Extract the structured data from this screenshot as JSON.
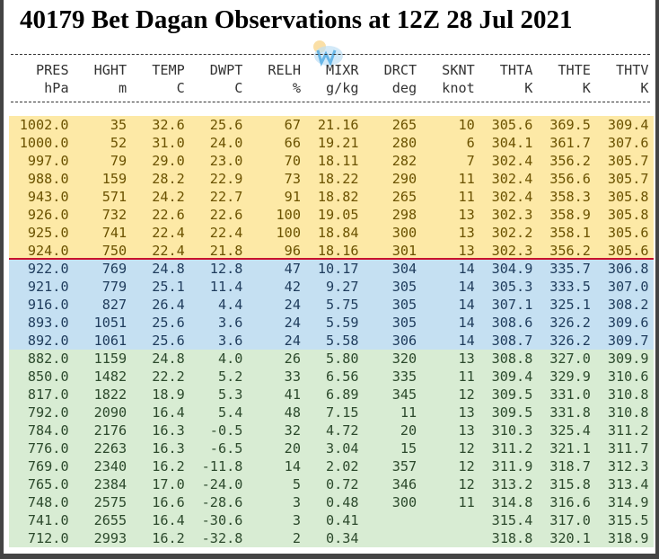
{
  "title": "40179 Bet Dagan Observations at 12Z 28 Jul 2021",
  "columns": [
    "PRES",
    "HGHT",
    "TEMP",
    "DWPT",
    "RELH",
    "MIXR",
    "DRCT",
    "SKNT",
    "THTA",
    "THTE",
    "THTV"
  ],
  "units": [
    "hPa",
    "m",
    "C",
    "C",
    "%",
    "g/kg",
    "deg",
    "knot",
    "K",
    "K",
    "K"
  ],
  "colors": {
    "yellow": "#fde9a6",
    "blue": "#c5e0f2",
    "green": "#d8ecd3",
    "separator": "#c8102e"
  },
  "bands": [
    {
      "color": "yellow",
      "rows": [
        [
          "1002.0",
          "35",
          "32.6",
          "25.6",
          "67",
          "21.16",
          "265",
          "10",
          "305.6",
          "369.5",
          "309.4"
        ],
        [
          "1000.0",
          "52",
          "31.0",
          "24.0",
          "66",
          "19.21",
          "280",
          "6",
          "304.1",
          "361.7",
          "307.6"
        ],
        [
          "997.0",
          "79",
          "29.0",
          "23.0",
          "70",
          "18.11",
          "282",
          "7",
          "302.4",
          "356.2",
          "305.7"
        ],
        [
          "988.0",
          "159",
          "28.2",
          "22.9",
          "73",
          "18.22",
          "290",
          "11",
          "302.4",
          "356.6",
          "305.7"
        ],
        [
          "943.0",
          "571",
          "24.2",
          "22.7",
          "91",
          "18.82",
          "265",
          "11",
          "302.4",
          "358.3",
          "305.8"
        ],
        [
          "926.0",
          "732",
          "22.6",
          "22.6",
          "100",
          "19.05",
          "298",
          "13",
          "302.3",
          "358.9",
          "305.8"
        ],
        [
          "925.0",
          "741",
          "22.4",
          "22.4",
          "100",
          "18.84",
          "300",
          "13",
          "302.2",
          "358.1",
          "305.6"
        ],
        [
          "924.0",
          "750",
          "22.4",
          "21.8",
          "96",
          "18.16",
          "301",
          "13",
          "302.3",
          "356.2",
          "305.6"
        ]
      ]
    },
    {
      "color": "blue",
      "rows": [
        [
          "922.0",
          "769",
          "24.8",
          "12.8",
          "47",
          "10.17",
          "304",
          "14",
          "304.9",
          "335.7",
          "306.8"
        ],
        [
          "921.0",
          "779",
          "25.1",
          "11.4",
          "42",
          "9.27",
          "305",
          "14",
          "305.3",
          "333.5",
          "307.0"
        ],
        [
          "916.0",
          "827",
          "26.4",
          "4.4",
          "24",
          "5.75",
          "305",
          "14",
          "307.1",
          "325.1",
          "308.2"
        ],
        [
          "893.0",
          "1051",
          "25.6",
          "3.6",
          "24",
          "5.59",
          "305",
          "14",
          "308.6",
          "326.2",
          "309.6"
        ],
        [
          "892.0",
          "1061",
          "25.6",
          "3.6",
          "24",
          "5.58",
          "306",
          "14",
          "308.7",
          "326.2",
          "309.7"
        ]
      ]
    },
    {
      "color": "green",
      "rows": [
        [
          "882.0",
          "1159",
          "24.8",
          "4.0",
          "26",
          "5.80",
          "320",
          "13",
          "308.8",
          "327.0",
          "309.9"
        ],
        [
          "850.0",
          "1482",
          "22.2",
          "5.2",
          "33",
          "6.56",
          "335",
          "11",
          "309.4",
          "329.9",
          "310.6"
        ],
        [
          "817.0",
          "1822",
          "18.9",
          "5.3",
          "41",
          "6.89",
          "345",
          "12",
          "309.5",
          "331.0",
          "310.8"
        ],
        [
          "792.0",
          "2090",
          "16.4",
          "5.4",
          "48",
          "7.15",
          "11",
          "13",
          "309.5",
          "331.8",
          "310.8"
        ],
        [
          "784.0",
          "2176",
          "16.3",
          "-0.5",
          "32",
          "4.72",
          "20",
          "13",
          "310.3",
          "325.4",
          "311.2"
        ],
        [
          "776.0",
          "2263",
          "16.3",
          "-6.5",
          "20",
          "3.04",
          "15",
          "12",
          "311.2",
          "321.1",
          "311.7"
        ],
        [
          "769.0",
          "2340",
          "16.2",
          "-11.8",
          "14",
          "2.02",
          "357",
          "12",
          "311.9",
          "318.7",
          "312.3"
        ],
        [
          "765.0",
          "2384",
          "17.0",
          "-24.0",
          "5",
          "0.72",
          "346",
          "12",
          "313.2",
          "315.8",
          "313.4"
        ],
        [
          "748.0",
          "2575",
          "16.6",
          "-28.6",
          "3",
          "0.48",
          "300",
          "11",
          "314.8",
          "316.6",
          "314.9"
        ],
        [
          "741.0",
          "2655",
          "16.4",
          "-30.6",
          "3",
          "0.41",
          "",
          "",
          "315.4",
          "317.0",
          "315.5"
        ],
        [
          "712.0",
          "2993",
          "16.2",
          "-32.8",
          "2",
          "0.34",
          "",
          "",
          "318.8",
          "320.1",
          "318.9"
        ]
      ]
    }
  ]
}
